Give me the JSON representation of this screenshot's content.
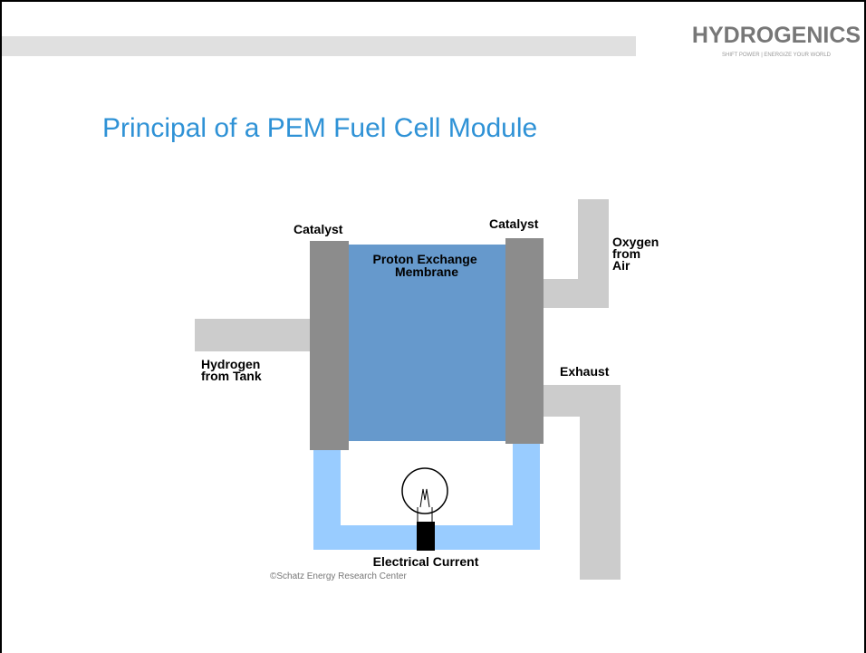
{
  "header": {
    "logo": "HYDROGENICS",
    "tagline": "SHIFT POWER | ENERGIZE YOUR WORLD"
  },
  "title": "Principal of a PEM Fuel Cell Module",
  "diagram": {
    "catalyst_left": "Catalyst",
    "catalyst_right": "Catalyst",
    "membrane": [
      "Proton Exchange",
      "Membrane"
    ],
    "oxygen": [
      "Oxygen",
      "from",
      "Air"
    ],
    "hydrogen": [
      "Hydrogen",
      "from Tank"
    ],
    "exhaust": "Exhaust",
    "current": "Electrical Current",
    "credit": "©Schatz Energy Research Center"
  }
}
